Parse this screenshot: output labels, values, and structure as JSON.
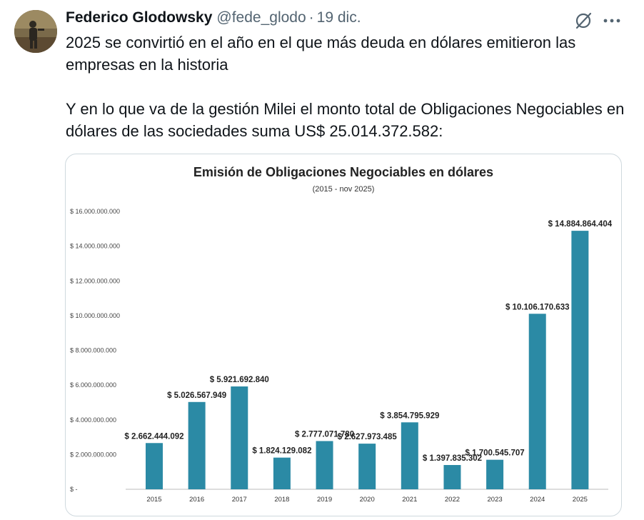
{
  "tweet": {
    "author_name": "Federico Glodowsky",
    "handle": "@fede_glodo",
    "separator": "·",
    "date": "19 dic.",
    "paragraph1": "2025 se convirtió en el año en el que más deuda en dólares emitieron las empresas en la historia",
    "paragraph2": "Y en lo que va de la gestión Milei el monto total de Obligaciones Negociables en dólares de las sociedades suma US$ 25.014.372.582:",
    "icons": {
      "grok": "grok-icon",
      "more": "more-icon"
    }
  },
  "chart_data": {
    "type": "bar",
    "title": "Emisión de Obligaciones Negociables en dólares",
    "subtitle": "(2015 - nov 2025)",
    "xlabel": "",
    "ylabel": "",
    "ylim": [
      0,
      16000000000
    ],
    "yticks": [
      0,
      2000000000,
      4000000000,
      6000000000,
      8000000000,
      10000000000,
      12000000000,
      14000000000,
      16000000000
    ],
    "ytick_labels": [
      "$ -",
      "$ 2.000.000.000",
      "$ 4.000.000.000",
      "$ 6.000.000.000",
      "$ 8.000.000.000",
      "$ 10.000.000.000",
      "$ 12.000.000.000",
      "$ 14.000.000.000",
      "$ 16.000.000.000"
    ],
    "categories": [
      "2015",
      "2016",
      "2017",
      "2018",
      "2019",
      "2020",
      "2021",
      "2022",
      "2023",
      "2024",
      "2025"
    ],
    "values": [
      2662444092,
      5026567949,
      5921692840,
      1824129082,
      2777071780,
      2627973485,
      3854795929,
      1397835302,
      1700545707,
      10106170633,
      14884864404
    ],
    "value_labels": [
      "$ 2.662.444.092",
      "$ 5.026.567.949",
      "$ 5.921.692.840",
      "$ 1.824.129.082",
      "$ 2.777.071.780",
      "$ 2.627.973.485",
      "$ 3.854.795.929",
      "$ 1.397.835.302",
      "$ 1.700.545.707",
      "$ 10.106.170.633",
      "$ 14.884.864.404"
    ],
    "bar_color": "#2b8aa5",
    "grid": false
  }
}
